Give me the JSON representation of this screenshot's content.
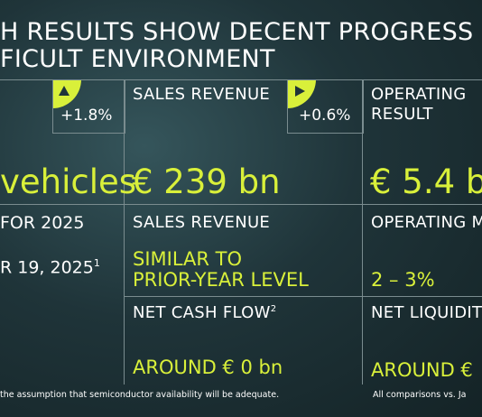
{
  "headline": {
    "line1": "H RESULTS SHOW DECENT PROGRESS",
    "line2": "FICULT ENVIRONMENT"
  },
  "deliveries": {
    "change": "+1.8%",
    "value": "vehicles"
  },
  "sales_revenue": {
    "label": "SALES REVENUE",
    "change": "+0.6%",
    "value": "€ 239 bn"
  },
  "operating_result": {
    "label_line1": "OPERATING",
    "label_line2": "RESULT",
    "value": "€ 5.4 b"
  },
  "outlook": {
    "heading": "FOR 2025",
    "date": "R 19, 2025",
    "footnote_mark": "1",
    "sales_revenue_label": "SALES REVENUE",
    "sales_revenue_value_line1": "SIMILAR TO",
    "sales_revenue_value_line2": "PRIOR-YEAR LEVEL",
    "operating_margin_label": "OPERATING M",
    "operating_margin_value": "2 – 3%",
    "net_cash_flow_label": "NET CASH FLOW",
    "net_cash_flow_mark": "2",
    "net_cash_flow_value": "AROUND € 0 bn",
    "net_liquidity_label": "NET LIQUIDIT",
    "net_liquidity_value": "AROUND €"
  },
  "footer": {
    "note": "the assumption that semiconductor availability will be adequate.",
    "comparison": "All comparisons vs. Ja"
  },
  "colors": {
    "accent": "#d9f03a",
    "background": "#1f3439",
    "line": "#7a8c8f"
  },
  "icons": [
    "up-arrow-triangle-icon",
    "right-arrow-triangle-icon"
  ]
}
